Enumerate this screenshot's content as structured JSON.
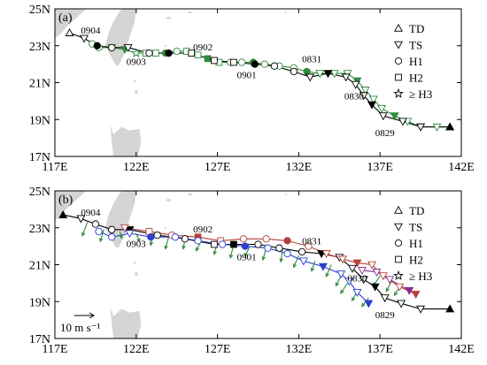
{
  "chart_data": [
    {
      "type": "scatter",
      "panel": "(a)",
      "xlabel": "",
      "ylabel": "",
      "xlim": [
        117,
        142
      ],
      "ylim": [
        17,
        25
      ],
      "xticks": [
        "117E",
        "122E",
        "127E",
        "132E",
        "137E",
        "142E"
      ],
      "yticks": [
        "17N",
        "19N",
        "21N",
        "23N",
        "25N"
      ],
      "legend": [
        "TD",
        "TS",
        "H1",
        "H2",
        "≥ H3"
      ],
      "legend_position": "right",
      "grid": false,
      "annotations": [
        {
          "text": "0904",
          "lon": 119.2,
          "lat": 23.65
        },
        {
          "text": "0903",
          "lon": 122.0,
          "lat": 21.95
        },
        {
          "text": "0902",
          "lon": 126.1,
          "lat": 22.75
        },
        {
          "text": "0901",
          "lon": 128.8,
          "lat": 21.25
        },
        {
          "text": "0831",
          "lon": 132.8,
          "lat": 22.1
        },
        {
          "text": "0830",
          "lon": 135.4,
          "lat": 20.1
        },
        {
          "text": "0829",
          "lon": 137.3,
          "lat": 18.1
        }
      ],
      "series": [
        {
          "marker_color": "#2e8b3c",
          "line_color": "#2e8b3c",
          "points": [
            {
              "lon": 141.3,
              "lat": 18.6,
              "cat": "TD"
            },
            {
              "lon": 140.5,
              "lat": 18.6,
              "cat": "TS"
            },
            {
              "lon": 139.5,
              "lat": 18.6,
              "cat": "TS"
            },
            {
              "lon": 138.7,
              "lat": 18.9,
              "cat": "TS"
            },
            {
              "lon": 137.9,
              "lat": 19.2,
              "cat": "TS"
            },
            {
              "lon": 137.1,
              "lat": 19.6,
              "cat": "TS"
            },
            {
              "lon": 136.6,
              "lat": 20.1,
              "cat": "TS"
            },
            {
              "lon": 136.1,
              "lat": 20.6,
              "cat": "TS"
            },
            {
              "lon": 135.6,
              "lat": 21.1,
              "cat": "TS"
            },
            {
              "lon": 135.0,
              "lat": 21.5,
              "cat": "TS"
            },
            {
              "lon": 134.2,
              "lat": 21.5,
              "cat": "TS"
            },
            {
              "lon": 133.3,
              "lat": 21.5,
              "cat": "TS"
            },
            {
              "lon": 132.5,
              "lat": 21.6,
              "cat": "H1"
            },
            {
              "lon": 131.7,
              "lat": 21.8,
              "cat": "H1"
            },
            {
              "lon": 130.8,
              "lat": 21.9,
              "cat": "H1"
            },
            {
              "lon": 129.9,
              "lat": 22.0,
              "cat": "H1"
            },
            {
              "lon": 129.2,
              "lat": 22.1,
              "cat": "H1"
            },
            {
              "lon": 128.5,
              "lat": 22.1,
              "cat": "H1"
            },
            {
              "lon": 127.8,
              "lat": 22.1,
              "cat": "H1"
            },
            {
              "lon": 127.1,
              "lat": 22.1,
              "cat": "H2"
            },
            {
              "lon": 126.4,
              "lat": 22.3,
              "cat": "H2"
            },
            {
              "lon": 125.8,
              "lat": 22.5,
              "cat": "H2"
            },
            {
              "lon": 125.1,
              "lat": 22.7,
              "cat": "H2"
            },
            {
              "lon": 124.5,
              "lat": 22.7,
              "cat": "H1"
            },
            {
              "lon": 123.8,
              "lat": 22.6,
              "cat": "H1"
            },
            {
              "lon": 123.2,
              "lat": 22.6,
              "cat": "H2"
            },
            {
              "lon": 122.6,
              "lat": 22.6,
              "cat": "H2"
            },
            {
              "lon": 122.0,
              "lat": 22.6,
              "cat": "H3"
            },
            {
              "lon": 121.3,
              "lat": 22.8,
              "cat": "TS"
            },
            {
              "lon": 120.5,
              "lat": 22.9,
              "cat": "TS"
            },
            {
              "lon": 119.7,
              "lat": 22.9,
              "cat": "H1"
            },
            {
              "lon": 119.3,
              "lat": 23.1,
              "cat": "H1"
            }
          ]
        },
        {
          "marker_color": "#000000",
          "line_color": "#000000",
          "points": [
            {
              "lon": 141.3,
              "lat": 18.6,
              "cat": "TD"
            },
            {
              "lon": 139.5,
              "lat": 18.6,
              "cat": "TS"
            },
            {
              "lon": 138.4,
              "lat": 18.9,
              "cat": "TS"
            },
            {
              "lon": 137.2,
              "lat": 19.2,
              "cat": "TS"
            },
            {
              "lon": 136.5,
              "lat": 19.8,
              "cat": "TS"
            },
            {
              "lon": 136.0,
              "lat": 20.3,
              "cat": "TS"
            },
            {
              "lon": 135.5,
              "lat": 20.9,
              "cat": "TS"
            },
            {
              "lon": 134.9,
              "lat": 21.3,
              "cat": "TS"
            },
            {
              "lon": 133.8,
              "lat": 21.5,
              "cat": "TS"
            },
            {
              "lon": 132.7,
              "lat": 21.3,
              "cat": "TS"
            },
            {
              "lon": 131.7,
              "lat": 21.6,
              "cat": "H1"
            },
            {
              "lon": 130.5,
              "lat": 21.9,
              "cat": "H1"
            },
            {
              "lon": 129.3,
              "lat": 22.0,
              "cat": "H1"
            },
            {
              "lon": 128.0,
              "lat": 22.1,
              "cat": "H2"
            },
            {
              "lon": 126.8,
              "lat": 22.2,
              "cat": "H2"
            },
            {
              "lon": 125.4,
              "lat": 22.6,
              "cat": "H2"
            },
            {
              "lon": 124.0,
              "lat": 22.6,
              "cat": "H1"
            },
            {
              "lon": 122.8,
              "lat": 22.6,
              "cat": "H1"
            },
            {
              "lon": 121.5,
              "lat": 22.9,
              "cat": "TS"
            },
            {
              "lon": 120.5,
              "lat": 22.9,
              "cat": "H1"
            },
            {
              "lon": 119.6,
              "lat": 23.0,
              "cat": "H1"
            },
            {
              "lon": 118.8,
              "lat": 23.4,
              "cat": "TS"
            },
            {
              "lon": 117.9,
              "lat": 23.7,
              "cat": "TD"
            }
          ]
        }
      ]
    },
    {
      "type": "scatter",
      "panel": "(b)",
      "xlabel": "",
      "ylabel": "",
      "xlim": [
        117,
        142
      ],
      "ylim": [
        17,
        25
      ],
      "xticks": [
        "117E",
        "122E",
        "127E",
        "132E",
        "137E",
        "142E"
      ],
      "yticks": [
        "17N",
        "19N",
        "21N",
        "23N",
        "25N"
      ],
      "legend": [
        "TD",
        "TS",
        "H1",
        "H2",
        "≥ H3"
      ],
      "legend_position": "right",
      "grid": false,
      "scale_label": "10 m s⁻¹",
      "annotations": [
        {
          "text": "0904",
          "lon": 119.2,
          "lat": 23.65
        },
        {
          "text": "0903",
          "lon": 122.0,
          "lat": 21.95
        },
        {
          "text": "0902",
          "lon": 126.1,
          "lat": 22.75
        },
        {
          "text": "0901",
          "lon": 128.8,
          "lat": 21.25
        },
        {
          "text": "0831",
          "lon": 132.8,
          "lat": 22.1
        },
        {
          "text": "0830",
          "lon": 135.6,
          "lat": 20.1
        },
        {
          "text": "0829",
          "lon": 137.3,
          "lat": 18.1
        }
      ],
      "series": [
        {
          "marker_color": "#000000",
          "line_color": "#000000",
          "points": [
            {
              "lon": 141.3,
              "lat": 18.6,
              "cat": "TD"
            },
            {
              "lon": 139.5,
              "lat": 18.6,
              "cat": "TS"
            },
            {
              "lon": 138.3,
              "lat": 18.9,
              "cat": "TS"
            },
            {
              "lon": 137.3,
              "lat": 19.2,
              "cat": "TS"
            },
            {
              "lon": 136.7,
              "lat": 19.8,
              "cat": "TS"
            },
            {
              "lon": 136.0,
              "lat": 20.2,
              "cat": "TS"
            },
            {
              "lon": 135.3,
              "lat": 20.8,
              "cat": "TS"
            },
            {
              "lon": 134.5,
              "lat": 21.4,
              "cat": "TS"
            },
            {
              "lon": 133.4,
              "lat": 21.6,
              "cat": "TS"
            },
            {
              "lon": 132.2,
              "lat": 21.7,
              "cat": "H1"
            },
            {
              "lon": 130.8,
              "lat": 21.9,
              "cat": "H1"
            },
            {
              "lon": 129.5,
              "lat": 22.1,
              "cat": "H1"
            },
            {
              "lon": 128.0,
              "lat": 22.1,
              "cat": "H2"
            },
            {
              "lon": 126.8,
              "lat": 22.1,
              "cat": "H2"
            },
            {
              "lon": 125.0,
              "lat": 22.4,
              "cat": "H1"
            },
            {
              "lon": 123.3,
              "lat": 22.6,
              "cat": "H1"
            },
            {
              "lon": 121.6,
              "lat": 22.9,
              "cat": "TS"
            },
            {
              "lon": 120.5,
              "lat": 22.9,
              "cat": "H1"
            },
            {
              "lon": 119.5,
              "lat": 23.2,
              "cat": "H1"
            },
            {
              "lon": 118.6,
              "lat": 23.5,
              "cat": "TS"
            },
            {
              "lon": 117.5,
              "lat": 23.7,
              "cat": "TD"
            }
          ]
        },
        {
          "marker_color": "#b5403a",
          "line_color": "#b5403a",
          "points": [
            {
              "lon": 139.2,
              "lat": 19.4,
              "cat": "TS"
            },
            {
              "lon": 138.2,
              "lat": 19.8,
              "cat": "TS"
            },
            {
              "lon": 137.2,
              "lat": 20.4,
              "cat": "TS"
            },
            {
              "lon": 136.5,
              "lat": 21.0,
              "cat": "TS"
            },
            {
              "lon": 135.6,
              "lat": 21.1,
              "cat": "TS"
            },
            {
              "lon": 134.7,
              "lat": 21.3,
              "cat": "TS"
            },
            {
              "lon": 133.7,
              "lat": 21.6,
              "cat": "TS"
            },
            {
              "lon": 132.6,
              "lat": 22.0,
              "cat": "H1"
            },
            {
              "lon": 131.3,
              "lat": 22.3,
              "cat": "H1"
            },
            {
              "lon": 130.0,
              "lat": 22.4,
              "cat": "H1"
            },
            {
              "lon": 128.6,
              "lat": 22.4,
              "cat": "H1"
            },
            {
              "lon": 127.2,
              "lat": 22.3,
              "cat": "H2"
            },
            {
              "lon": 125.8,
              "lat": 22.5,
              "cat": "H2"
            },
            {
              "lon": 124.2,
              "lat": 22.6,
              "cat": "H1"
            },
            {
              "lon": 122.8,
              "lat": 22.8,
              "cat": "H2"
            },
            {
              "lon": 121.3,
              "lat": 23.0,
              "cat": "TS"
            }
          ]
        },
        {
          "marker_color": "#2b3fd1",
          "line_color": "#2b3fd1",
          "points": [
            {
              "lon": 136.3,
              "lat": 18.9,
              "cat": "TS"
            },
            {
              "lon": 135.6,
              "lat": 19.5,
              "cat": "TS"
            },
            {
              "lon": 135.1,
              "lat": 20.1,
              "cat": "TS"
            },
            {
              "lon": 134.6,
              "lat": 20.5,
              "cat": "TS"
            },
            {
              "lon": 133.5,
              "lat": 20.9,
              "cat": "TS"
            },
            {
              "lon": 132.3,
              "lat": 21.2,
              "cat": "TS"
            },
            {
              "lon": 131.3,
              "lat": 21.6,
              "cat": "H1"
            },
            {
              "lon": 130.1,
              "lat": 21.9,
              "cat": "H1"
            },
            {
              "lon": 128.7,
              "lat": 22.0,
              "cat": "H1"
            },
            {
              "lon": 127.3,
              "lat": 22.1,
              "cat": "H1"
            },
            {
              "lon": 125.8,
              "lat": 22.3,
              "cat": "H1"
            },
            {
              "lon": 124.4,
              "lat": 22.5,
              "cat": "H1"
            },
            {
              "lon": 122.9,
              "lat": 22.5,
              "cat": "H1"
            },
            {
              "lon": 121.6,
              "lat": 22.7,
              "cat": "TS"
            },
            {
              "lon": 120.5,
              "lat": 22.5,
              "cat": "H1"
            },
            {
              "lon": 119.7,
              "lat": 22.8,
              "cat": "H1"
            }
          ]
        },
        {
          "marker_color": "#8a2b8a",
          "line_color": "#8a2b8a",
          "points": [
            {
              "lon": 138.8,
              "lat": 19.6,
              "cat": "TS"
            },
            {
              "lon": 137.6,
              "lat": 20.2,
              "cat": "TS"
            },
            {
              "lon": 136.8,
              "lat": 20.6,
              "cat": "TS"
            },
            {
              "lon": 135.9,
              "lat": 20.7,
              "cat": "TS"
            }
          ]
        }
      ],
      "wind_vectors": [
        {
          "lon": 119.0,
          "lat": 23.3,
          "u": -3,
          "v": -8
        },
        {
          "lon": 120.0,
          "lat": 22.9,
          "u": -2,
          "v": -7
        },
        {
          "lon": 121.0,
          "lat": 22.8,
          "u": 1,
          "v": -4
        },
        {
          "lon": 122.0,
          "lat": 22.7,
          "u": 2,
          "v": -5
        },
        {
          "lon": 123.0,
          "lat": 22.6,
          "u": -1,
          "v": -6
        },
        {
          "lon": 124.0,
          "lat": 22.5,
          "u": -2,
          "v": -7
        },
        {
          "lon": 125.0,
          "lat": 22.4,
          "u": -1,
          "v": -6
        },
        {
          "lon": 126.0,
          "lat": 22.3,
          "u": -3,
          "v": -6
        },
        {
          "lon": 127.0,
          "lat": 22.2,
          "u": -2,
          "v": -7
        },
        {
          "lon": 128.0,
          "lat": 22.1,
          "u": -2,
          "v": -8
        },
        {
          "lon": 129.0,
          "lat": 22.0,
          "u": -3,
          "v": -6
        },
        {
          "lon": 130.0,
          "lat": 21.9,
          "u": -2,
          "v": -7
        },
        {
          "lon": 131.0,
          "lat": 21.8,
          "u": -1,
          "v": -7
        },
        {
          "lon": 132.0,
          "lat": 21.5,
          "u": -3,
          "v": -7
        },
        {
          "lon": 133.0,
          "lat": 21.2,
          "u": -2,
          "v": -6
        },
        {
          "lon": 134.0,
          "lat": 21.0,
          "u": -3,
          "v": -7
        },
        {
          "lon": 134.6,
          "lat": 20.4,
          "u": -3,
          "v": -6
        },
        {
          "lon": 135.0,
          "lat": 20.0,
          "u": -4,
          "v": -6
        },
        {
          "lon": 135.6,
          "lat": 19.6,
          "u": -3,
          "v": -6
        },
        {
          "lon": 136.3,
          "lat": 19.2,
          "u": -4,
          "v": -5
        },
        {
          "lon": 137.0,
          "lat": 20.4,
          "u": -4,
          "v": -6
        },
        {
          "lon": 137.7,
          "lat": 20.1,
          "u": -3,
          "v": -6
        },
        {
          "lon": 138.2,
          "lat": 19.8,
          "u": -3,
          "v": -5
        }
      ]
    }
  ]
}
